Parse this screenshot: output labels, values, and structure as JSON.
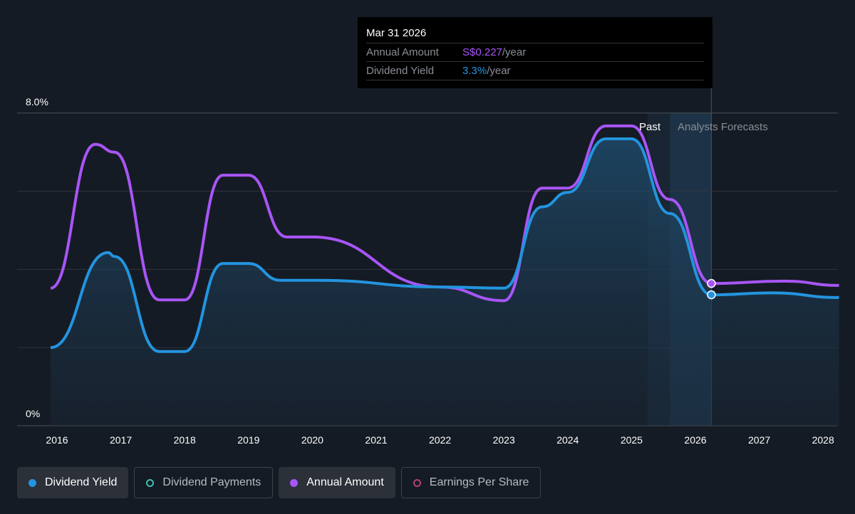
{
  "chart_data": {
    "type": "line",
    "title": "",
    "xlabel": "",
    "ylabel": "",
    "ylim": [
      0,
      8
    ],
    "xlim": [
      2015.5,
      2028.25
    ],
    "y_tick_labels": [
      "0%",
      "8.0%"
    ],
    "x_tick_labels": [
      "2016",
      "2017",
      "2018",
      "2019",
      "2020",
      "2021",
      "2022",
      "2023",
      "2024",
      "2025",
      "2026",
      "2027",
      "2028"
    ],
    "region_labels": {
      "past": "Past",
      "forecast": "Analysts Forecasts"
    },
    "past_end": 2025.25,
    "forecast_band": [
      2025.6,
      2026.25
    ],
    "series": [
      {
        "name": "Dividend Yield",
        "color": "#2394df",
        "unit": "%",
        "x": [
          2015.9,
          2016.8,
          2016.9,
          2017.6,
          2018.0,
          2018.6,
          2019.0,
          2019.5,
          2020.1,
          2022.0,
          2023.0,
          2023.6,
          2024.0,
          2024.6,
          2025.0,
          2025.6,
          2026.25,
          2027.2,
          2028.25
        ],
        "values": [
          2.0,
          4.43,
          4.33,
          1.9,
          1.9,
          4.15,
          4.15,
          3.72,
          3.72,
          3.55,
          3.52,
          5.6,
          5.97,
          7.34,
          7.34,
          5.43,
          3.35,
          3.4,
          3.28
        ]
      },
      {
        "name": "Annual Amount",
        "color": "#a855f7",
        "unit": "scaled",
        "x": [
          2015.9,
          2016.6,
          2016.9,
          2017.6,
          2018.0,
          2018.6,
          2019.0,
          2019.6,
          2020.0,
          2022.0,
          2023.0,
          2023.6,
          2024.0,
          2024.6,
          2025.0,
          2025.6,
          2026.25,
          2027.4,
          2028.25
        ],
        "values": [
          3.52,
          7.2,
          7.0,
          3.22,
          3.22,
          6.41,
          6.41,
          4.83,
          4.83,
          3.55,
          3.2,
          6.08,
          6.08,
          7.67,
          7.67,
          5.79,
          3.64,
          3.7,
          3.59
        ]
      }
    ],
    "tooltip": {
      "date": "Mar 31 2026",
      "rows": [
        {
          "label": "Annual Amount",
          "value": "S$0.227",
          "suffix": "/year"
        },
        {
          "label": "Dividend Yield",
          "value": "3.3%",
          "suffix": "/year"
        }
      ]
    }
  },
  "legend": [
    {
      "label": "Dividend Yield",
      "active": true,
      "color": "#2394df"
    },
    {
      "label": "Dividend Payments",
      "active": false,
      "color": "#3fbfae"
    },
    {
      "label": "Annual Amount",
      "active": true,
      "color": "#a855f7"
    },
    {
      "label": "Earnings Per Share",
      "active": false,
      "color": "#b2407a"
    }
  ]
}
